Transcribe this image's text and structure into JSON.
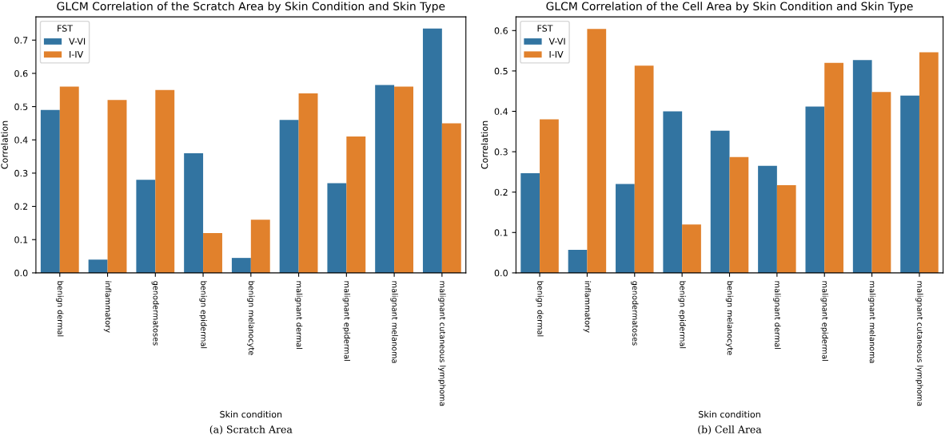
{
  "chart_data": [
    {
      "type": "bar",
      "title": "GLCM Correlation of the Scratch Area by Skin Condition and Skin Type",
      "xlabel": "Skin condition",
      "ylabel": "Correlation",
      "legend_title": "FST",
      "legend": "top left",
      "annotations": [
        "(a) Scratch Area"
      ],
      "categories": [
        "benign dermal",
        "inflammatory",
        "genodermatoses",
        "benign epidermal",
        "benign melanocyte",
        "malignant dermal",
        "malignant epidermal",
        "malignant melanoma",
        "malignant cutaneous lymphoma"
      ],
      "ylim": [
        0,
        0.77
      ],
      "yticks": [
        {
          "value": 0,
          "label": "0.0"
        },
        0.1,
        0.2,
        0.3,
        0.4,
        0.5,
        0.6,
        0.7
      ],
      "series": [
        {
          "name": "V-VI",
          "color": "#3274a1",
          "values": [
            0.49,
            0.04,
            0.28,
            0.36,
            0.045,
            0.46,
            0.27,
            0.565,
            0.735
          ]
        },
        {
          "name": "I-IV",
          "color": "#e1812c",
          "values": [
            0.56,
            0.52,
            0.55,
            0.12,
            0.16,
            0.54,
            0.41,
            0.56,
            0.45
          ]
        }
      ]
    },
    {
      "type": "bar",
      "title": "GLCM Correlation of the Cell Area by Skin Condition and Skin Type",
      "xlabel": "Skin condition",
      "ylabel": "Correlation",
      "legend_title": "FST",
      "legend": "top left",
      "annotations": [
        "(b) Cell Area"
      ],
      "categories": [
        "benign dermal",
        "inflammatory",
        "genodermatoses",
        "benign epidermal",
        "benign melanocyte",
        "malignant dermal",
        "malignant epidermal",
        "malignant melanoma",
        "malignant cutaneous lymphoma"
      ],
      "ylim": [
        0,
        0.634
      ],
      "yticks": [
        {
          "value": 0,
          "label": "0.0"
        },
        0.1,
        0.2,
        0.3,
        0.4,
        0.5,
        0.6
      ],
      "series": [
        {
          "name": "V-VI",
          "color": "#3274a1",
          "values": [
            0.247,
            0.057,
            0.22,
            0.4,
            0.352,
            0.265,
            0.412,
            0.527,
            0.439
          ]
        },
        {
          "name": "I-IV",
          "color": "#e1812c",
          "values": [
            0.38,
            0.604,
            0.513,
            0.12,
            0.287,
            0.217,
            0.52,
            0.448,
            0.546
          ]
        }
      ]
    }
  ]
}
